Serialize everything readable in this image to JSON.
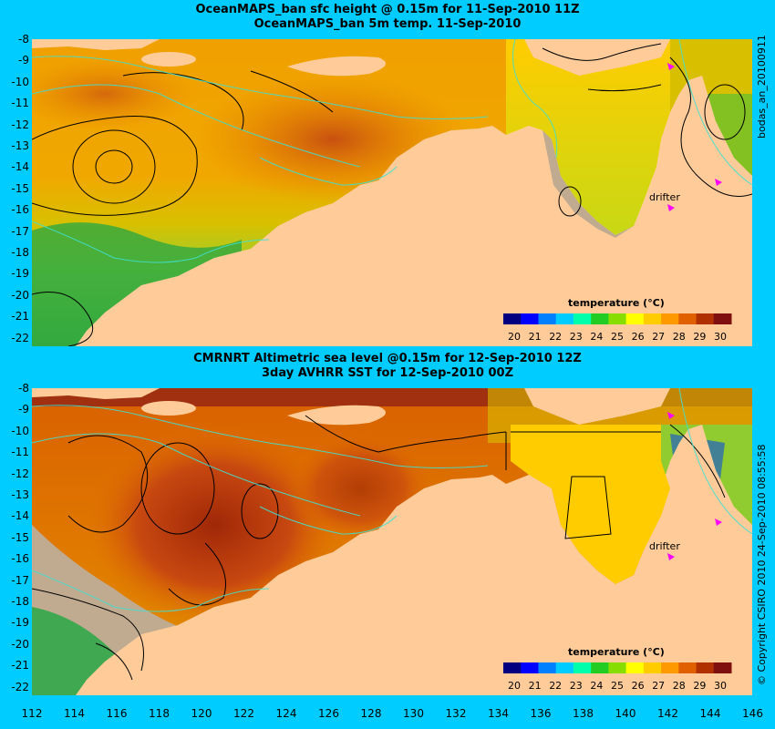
{
  "top_panel": {
    "title_line1": "OceanMAPS_ban sfc height @ 0.15m for 11-Sep-2010 11Z",
    "title_line2": "OceanMAPS_ban 5m temp. 11-Sep-2010",
    "side_label": "bodas_an_20100911",
    "drifter_label": "drifter",
    "legend_title": "temperature (°C)"
  },
  "bottom_panel": {
    "title_line1": "CMRNRT Altimetric sea level  @0.15m  for 12-Sep-2010 12Z",
    "title_line2": "3day AVHRR SST for 12-Sep-2010 00Z",
    "side_label": "© Copyright CSIRO 2010   24-Sep-2010 08:55:58",
    "drifter_label": "drifter",
    "legend_title": "temperature (°C)"
  },
  "colorbar": {
    "ticks": [
      "20",
      "21",
      "22",
      "23",
      "24",
      "25",
      "26",
      "27",
      "28",
      "29",
      "30"
    ],
    "colors": [
      "#000080",
      "#0000ff",
      "#0080ff",
      "#00ccff",
      "#00ffaa",
      "#22cc22",
      "#88dd00",
      "#ffff00",
      "#ffcc00",
      "#ff9900",
      "#e06000",
      "#b03000",
      "#801010"
    ]
  },
  "axes": {
    "lat_labels": [
      "-8",
      "-9",
      "-10",
      "-11",
      "-12",
      "-13",
      "-14",
      "-15",
      "-16",
      "-17",
      "-18",
      "-19",
      "-20",
      "-21",
      "-22"
    ],
    "lon_labels": [
      "112",
      "114",
      "116",
      "118",
      "120",
      "122",
      "124",
      "126",
      "128",
      "130",
      "132",
      "134",
      "136",
      "138",
      "140",
      "142",
      "144",
      "146"
    ]
  },
  "colors": {
    "background": "#00ccff",
    "land": "#ffcc99",
    "no_data": "#c0aa90",
    "contour": "#000000",
    "isobath": "#40e0d0",
    "drifter": "#ff00ff"
  }
}
